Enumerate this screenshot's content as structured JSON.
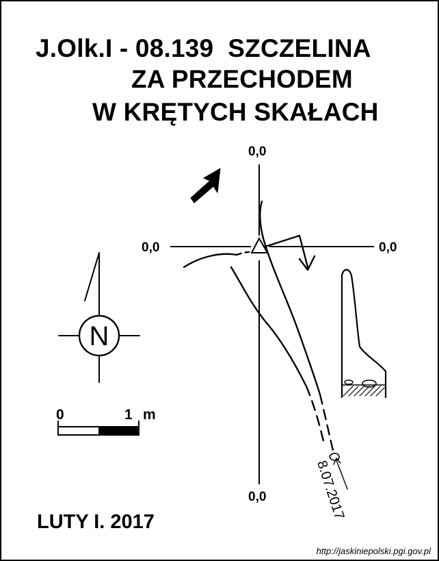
{
  "title": {
    "line1": "J.Olk.I - 08.139  SZCZELINA",
    "line2": "ZA PRZECHODEM",
    "line3": "W KRĘTYCH SKAŁACH"
  },
  "grid_labels": {
    "top": "0,0",
    "left": "0,0",
    "right": "0,0",
    "bottom": "0,0"
  },
  "north": {
    "label": "N"
  },
  "scale_bar": {
    "start_label": "0",
    "end_label": "1",
    "unit": "m"
  },
  "survey_date": "8.07.2017",
  "author_date": "LUTY I. 2017",
  "source": "http://jaskiniepolski.pgi.gov.pl"
}
